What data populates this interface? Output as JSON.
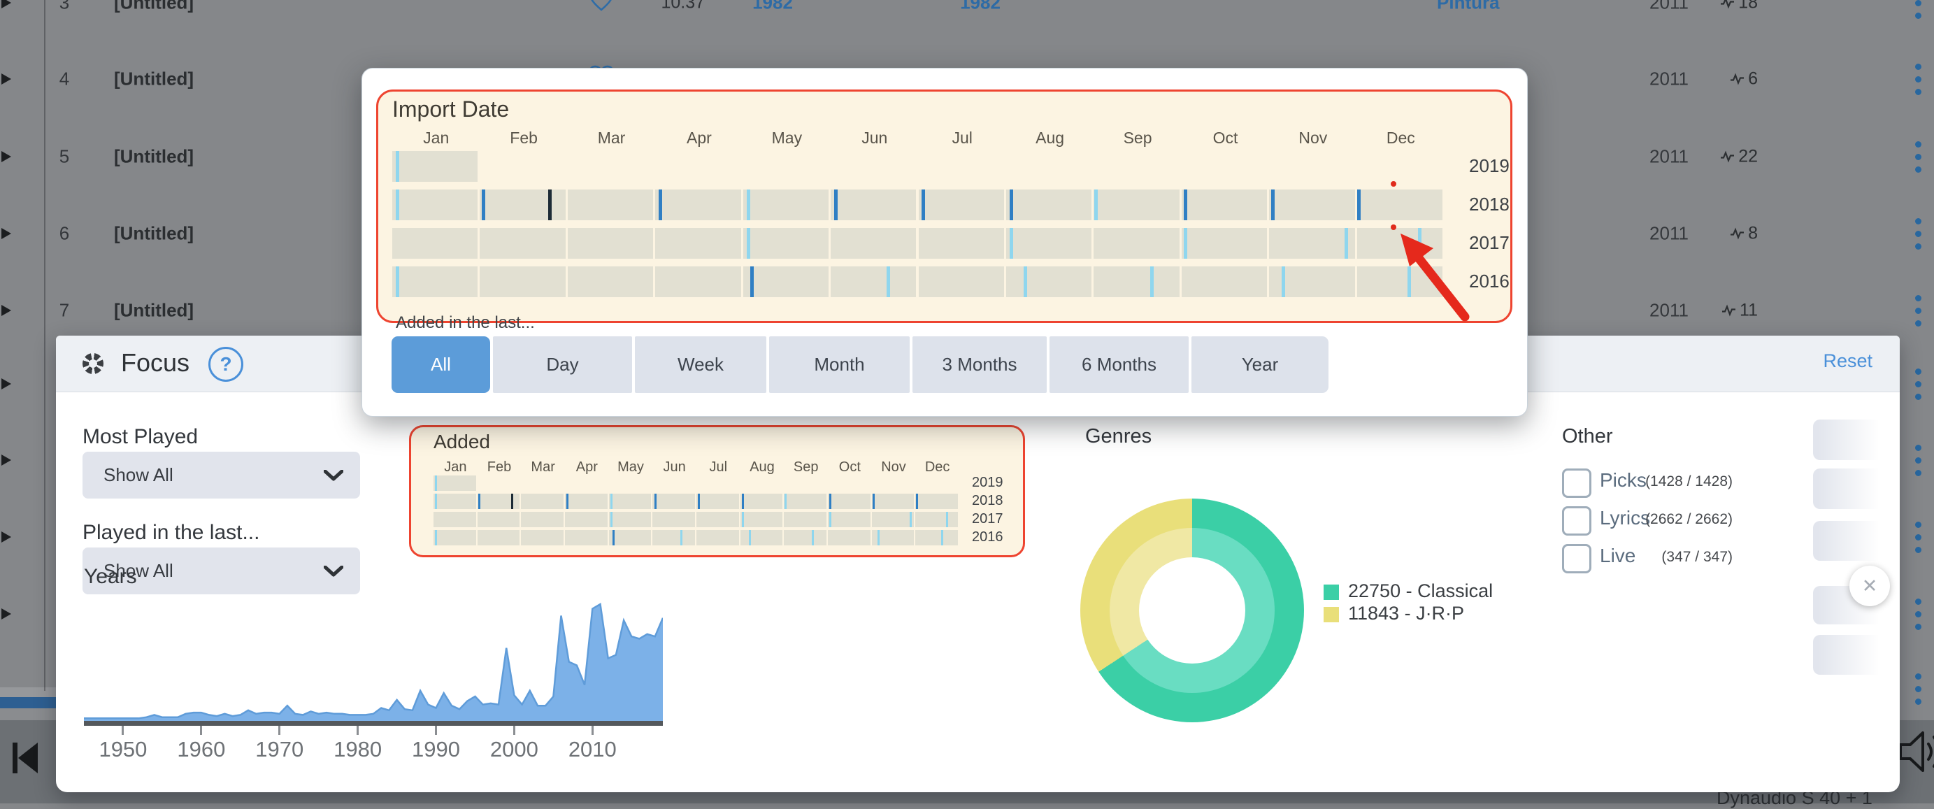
{
  "backdrop": {
    "rows": [
      {
        "num": "3",
        "title": "[Untitled]",
        "favorite": true,
        "duration": "10.37",
        "release_year": "1982",
        "recording_year": "1982",
        "genre": "Pintura",
        "added": "2011",
        "plays": "18"
      },
      {
        "num": "4",
        "title": "[Untitled]",
        "favorite": true,
        "added": "2011",
        "plays": "6"
      },
      {
        "num": "5",
        "title": "[Untitled]",
        "added": "2011",
        "plays": "22"
      },
      {
        "num": "6",
        "title": "[Untitled]",
        "added": "2011",
        "plays": "8"
      },
      {
        "num": "7",
        "title": "[Untitled]",
        "added": "2011",
        "plays": "11"
      }
    ]
  },
  "player": {
    "device_label": "Dynaudio S 40 + 1"
  },
  "popover": {
    "title": "Import Date",
    "added_in_last_label": "Added in the last...",
    "buttons": [
      {
        "label": "All",
        "selected": true
      },
      {
        "label": "Day",
        "selected": false
      },
      {
        "label": "Week",
        "selected": false
      },
      {
        "label": "Month",
        "selected": false
      },
      {
        "label": "3 Months",
        "selected": false
      },
      {
        "label": "6 Months",
        "selected": false
      },
      {
        "label": "Year",
        "selected": false
      }
    ]
  },
  "focus_panel": {
    "title": "Focus",
    "help_glyph": "?",
    "reset_label": "Reset",
    "most_played_label": "Most Played",
    "most_played_value": "Show All",
    "played_last_label": "Played in the last...",
    "played_last_value": "Show All",
    "added_title": "Added",
    "years_title": "Years",
    "genres_title": "Genres",
    "other_title": "Other",
    "other_items": [
      {
        "label": "Picks",
        "count": "(1428 / 1428)",
        "checked": false
      },
      {
        "label": "Lyrics",
        "count": "(2662 / 2662)",
        "checked": false
      },
      {
        "label": "Live",
        "count": "(347 / 347)",
        "checked": false
      }
    ],
    "close_button_glyph": "✕"
  },
  "annotation": {
    "type": "hand-drawn-arrow",
    "color": "#e5291c",
    "points_at": "Dec 2017 import-date cell",
    "marker_dots": 2
  },
  "chart_data": [
    {
      "type": "heatmap",
      "title": "Import Date",
      "note": "shown twice: Import Date popover and Added box in Focus panel; ticks are events positioned as fraction of the year row",
      "columns": [
        "Jan",
        "Feb",
        "Mar",
        "Apr",
        "May",
        "Jun",
        "Jul",
        "Aug",
        "Sep",
        "Oct",
        "Nov",
        "Dec"
      ],
      "rows": [
        "2019",
        "2018",
        "2017",
        "2016"
      ],
      "cells_per_row": {
        "2019": 1,
        "2018": 12,
        "2017": 12,
        "2016": 12
      },
      "tick_colors": {
        "cyan": "#8fd6ee",
        "blue": "#2f7fc4",
        "dark": "#1c2b36"
      },
      "ticks": {
        "2019": [
          {
            "p": 0.003,
            "c": "cyan"
          }
        ],
        "2018": [
          {
            "p": 0.003,
            "c": "cyan"
          },
          {
            "p": 0.085,
            "c": "blue"
          },
          {
            "p": 0.148,
            "c": "dark"
          },
          {
            "p": 0.253,
            "c": "blue"
          },
          {
            "p": 0.337,
            "c": "cyan"
          },
          {
            "p": 0.42,
            "c": "blue"
          },
          {
            "p": 0.503,
            "c": "blue"
          },
          {
            "p": 0.587,
            "c": "blue"
          },
          {
            "p": 0.667,
            "c": "cyan"
          },
          {
            "p": 0.752,
            "c": "blue"
          },
          {
            "p": 0.835,
            "c": "blue"
          },
          {
            "p": 0.917,
            "c": "blue"
          }
        ],
        "2017": [
          {
            "p": 0.337,
            "c": "cyan"
          },
          {
            "p": 0.587,
            "c": "cyan"
          },
          {
            "p": 0.752,
            "c": "cyan"
          },
          {
            "p": 0.905,
            "c": "cyan"
          },
          {
            "p": 0.975,
            "c": "cyan"
          }
        ],
        "2016": [
          {
            "p": 0.003,
            "c": "cyan"
          },
          {
            "p": 0.34,
            "c": "blue"
          },
          {
            "p": 0.47,
            "c": "cyan"
          },
          {
            "p": 0.6,
            "c": "cyan"
          },
          {
            "p": 0.72,
            "c": "cyan"
          },
          {
            "p": 0.845,
            "c": "cyan"
          },
          {
            "p": 0.965,
            "c": "cyan"
          }
        ]
      }
    },
    {
      "type": "area",
      "title": "Years",
      "x_start": 1945,
      "x_end": 2019,
      "values": [
        1,
        1,
        1,
        1,
        1,
        1,
        1,
        1,
        2,
        4,
        2,
        2,
        2,
        5,
        6,
        6,
        4,
        3,
        5,
        3,
        4,
        8,
        5,
        6,
        6,
        5,
        12,
        5,
        4,
        7,
        5,
        6,
        5,
        5,
        4,
        4,
        4,
        5,
        10,
        8,
        17,
        9,
        8,
        25,
        13,
        10,
        23,
        12,
        9,
        16,
        20,
        13,
        14,
        13,
        62,
        21,
        13,
        25,
        12,
        12,
        20,
        90,
        50,
        47,
        30,
        96,
        100,
        53,
        56,
        86,
        72,
        70,
        74,
        72,
        88
      ],
      "xticks": [
        1950,
        1960,
        1970,
        1980,
        1990,
        2000,
        2010
      ],
      "ylim": [
        0,
        100
      ],
      "fill": "#7cb1e8",
      "stroke": "#5f9cd9"
    },
    {
      "type": "pie",
      "title": "Genres",
      "donut": true,
      "slices": [
        {
          "label": "22750 - Classical",
          "name": "Classical",
          "value": 22750,
          "color": "#3bcfa6",
          "color_light": "#69ddc2"
        },
        {
          "label": "11843 - J·R·P",
          "name": "J·R·P",
          "value": 11843,
          "color": "#e9df7a",
          "color_light": "#f0e8a4"
        }
      ],
      "legend_position": "right"
    }
  ]
}
